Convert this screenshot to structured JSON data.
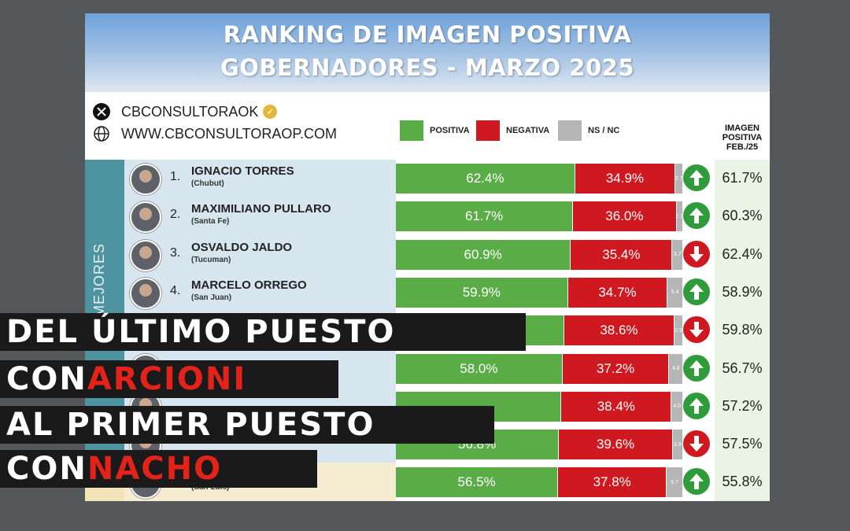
{
  "header": {
    "title_line1": "RANKING DE IMAGEN POSITIVA",
    "title_line2": "GOBERNADORES - MARZO 2025"
  },
  "brand": {
    "handle": "CBCONSULTORAOK",
    "website": "WWW.CBCONSULTORAOP.COM"
  },
  "legend": {
    "positive": "POSITIVA",
    "negative": "NEGATIVA",
    "nsnc": "NS / NC"
  },
  "feb_header": [
    "IMAGEN",
    "POSITIVA",
    "FEB./25"
  ],
  "side_label": "MEJORES",
  "colors": {
    "positive": "#5aac47",
    "negative": "#cf1820",
    "nsnc": "#b5b5b5",
    "arrow_up": "#2f9b3a",
    "arrow_down": "#cf1820",
    "caption_highlight": "#e3221b"
  },
  "chart_data": {
    "type": "bar",
    "title": "RANKING DE IMAGEN POSITIVA GOBERNADORES - MARZO 2025",
    "stacked": true,
    "series_names": [
      "POSITIVA",
      "NEGATIVA",
      "NS / NC"
    ],
    "rows": [
      {
        "rank": "1.",
        "name": "IGNACIO TORRES",
        "province": "(Chubut)",
        "positive": 62.4,
        "negative": 34.9,
        "nsnc": 2.7,
        "positive_label": "62.4%",
        "negative_label": "34.9%",
        "nsnc_label": "2.7",
        "trend": "up",
        "feb": "61.7%"
      },
      {
        "rank": "2.",
        "name": "MAXIMILIANO PULLARO",
        "province": "(Santa Fe)",
        "positive": 61.7,
        "negative": 36.0,
        "nsnc": 2.3,
        "positive_label": "61.7%",
        "negative_label": "36.0%",
        "nsnc_label": "2.3",
        "trend": "up",
        "feb": "60.3%"
      },
      {
        "rank": "3.",
        "name": "OSVALDO JALDO",
        "province": "(Tucuman)",
        "positive": 60.9,
        "negative": 35.4,
        "nsnc": 3.7,
        "positive_label": "60.9%",
        "negative_label": "35.4%",
        "nsnc_label": "3.7",
        "trend": "down",
        "feb": "62.4%"
      },
      {
        "rank": "4.",
        "name": "MARCELO ORREGO",
        "province": "(San Juan)",
        "positive": 59.9,
        "negative": 34.7,
        "nsnc": 5.4,
        "positive_label": "59.9%",
        "negative_label": "34.7%",
        "nsnc_label": "5.4",
        "trend": "up",
        "feb": "58.9%"
      },
      {
        "rank": "",
        "name": "",
        "province": "",
        "positive": 58.5,
        "negative": 38.6,
        "nsnc": 2.9,
        "positive_label": "",
        "negative_label": "38.6%",
        "nsnc_label": "2.9",
        "trend": "down",
        "feb": "59.8%"
      },
      {
        "rank": "",
        "name": "",
        "province": "",
        "positive": 58.0,
        "negative": 37.2,
        "nsnc": 4.8,
        "positive_label": "58.0%",
        "negative_label": "37.2%",
        "nsnc_label": "4.8",
        "trend": "up",
        "feb": "56.7%"
      },
      {
        "rank": "",
        "name": "",
        "province": "",
        "positive": 57.6,
        "negative": 38.4,
        "nsnc": 4.0,
        "positive_label": "",
        "negative_label": "38.4%",
        "nsnc_label": "4.0",
        "trend": "up",
        "feb": "57.2%"
      },
      {
        "rank": "",
        "name": "",
        "province": "",
        "positive": 56.8,
        "negative": 39.6,
        "nsnc": 3.6,
        "positive_label": "56.8%",
        "negative_label": "39.6%",
        "nsnc_label": "3.6",
        "trend": "down",
        "feb": "57.5%"
      },
      {
        "rank": "",
        "name": "",
        "province": "(San Luis)",
        "positive": 56.5,
        "negative": 37.8,
        "nsnc": 5.7,
        "positive_label": "56.5%",
        "negative_label": "37.8%",
        "nsnc_label": "5.7",
        "trend": "up",
        "feb": "55.8%"
      }
    ]
  },
  "overlay": {
    "line1": [
      {
        "text": "DEL ÚLTIMO PUESTO",
        "highlight": false
      }
    ],
    "line2": [
      {
        "text": "CON ",
        "highlight": false
      },
      {
        "text": "ARCIONI",
        "highlight": true
      }
    ],
    "line3": [
      {
        "text": "AL PRIMER PUESTO",
        "highlight": false
      }
    ],
    "line4": [
      {
        "text": "CON ",
        "highlight": false
      },
      {
        "text": "NACHO",
        "highlight": true
      }
    ]
  }
}
